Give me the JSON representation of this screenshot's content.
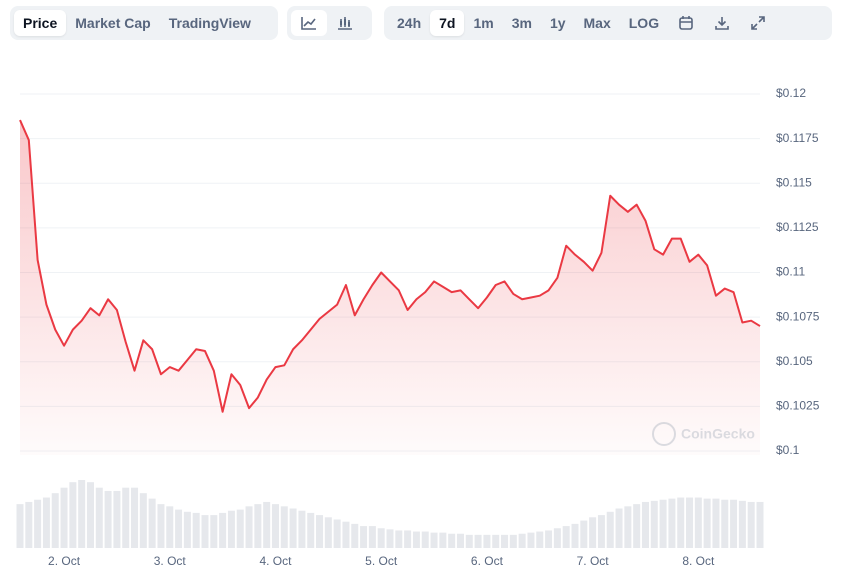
{
  "toolbar": {
    "views": [
      "Price",
      "Market Cap",
      "TradingView"
    ],
    "active_view": 0,
    "ranges": [
      "24h",
      "7d",
      "1m",
      "3m",
      "1y",
      "Max",
      "LOG"
    ],
    "active_range": 1
  },
  "chart_data": {
    "type": "area",
    "watermark": "CoinGecko",
    "color": "#ea3943",
    "grid": true,
    "categories": [
      null,
      null,
      null,
      null,
      null,
      "2. Oct",
      null,
      null,
      null,
      null,
      null,
      null,
      null,
      null,
      null,
      null,
      null,
      "3. Oct",
      null,
      null,
      null,
      null,
      null,
      null,
      null,
      null,
      null,
      null,
      null,
      "4. Oct",
      null,
      null,
      null,
      null,
      null,
      null,
      null,
      null,
      null,
      null,
      null,
      "5. Oct",
      null,
      null,
      null,
      null,
      null,
      null,
      null,
      null,
      null,
      null,
      null,
      "6. Oct",
      null,
      null,
      null,
      null,
      null,
      null,
      null,
      null,
      null,
      null,
      null,
      "7. Oct",
      null,
      null,
      null,
      null,
      null,
      null,
      null,
      null,
      null,
      null,
      null,
      "8. Oct",
      null,
      null,
      null,
      null,
      null,
      null,
      null
    ],
    "values": [
      0.11854,
      0.11742,
      0.1107,
      0.1082,
      0.1068,
      0.1059,
      0.1068,
      0.1073,
      0.108,
      0.1076,
      0.1085,
      0.1079,
      0.1061,
      0.1045,
      0.1062,
      0.1057,
      0.1043,
      0.1047,
      0.1045,
      0.1051,
      0.1057,
      0.1056,
      0.1045,
      0.1022,
      0.1043,
      0.1037,
      0.1024,
      0.103,
      0.104,
      0.1047,
      0.1048,
      0.1057,
      0.1062,
      0.1068,
      0.1074,
      0.1078,
      0.1082,
      0.1093,
      0.1076,
      0.1085,
      0.1093,
      0.11,
      0.1095,
      0.109,
      0.1079,
      0.1085,
      0.1089,
      0.1095,
      0.1092,
      0.1089,
      0.109,
      0.1085,
      0.108,
      0.1086,
      0.1093,
      0.1095,
      0.1088,
      0.1085,
      0.1086,
      0.1087,
      0.109,
      0.1097,
      0.1115,
      0.111,
      0.1106,
      0.1101,
      0.1111,
      0.1143,
      0.1138,
      0.1134,
      0.1138,
      0.1129,
      0.1113,
      0.111,
      0.1119,
      0.1119,
      0.1106,
      0.111,
      0.1104,
      0.1087,
      0.1091,
      0.1089,
      0.1072,
      0.1073,
      0.107
    ],
    "volume": [
      40,
      42,
      44,
      46,
      50,
      55,
      60,
      62,
      60,
      55,
      52,
      52,
      55,
      55,
      50,
      45,
      40,
      38,
      35,
      33,
      32,
      30,
      30,
      32,
      34,
      35,
      38,
      40,
      42,
      40,
      38,
      36,
      34,
      32,
      30,
      28,
      26,
      24,
      22,
      20,
      20,
      18,
      17,
      16,
      16,
      15,
      15,
      14,
      14,
      13,
      13,
      12,
      12,
      12,
      12,
      12,
      12,
      13,
      14,
      15,
      16,
      18,
      20,
      22,
      25,
      28,
      30,
      33,
      36,
      38,
      40,
      42,
      43,
      44,
      45,
      46,
      46,
      46,
      45,
      45,
      44,
      44,
      43,
      42,
      42
    ],
    "ylim": [
      0.1,
      0.12
    ],
    "yticks": [
      {
        "value": 0.1,
        "label": "$0.1"
      },
      {
        "value": 0.1025,
        "label": "$0.1025"
      },
      {
        "value": 0.105,
        "label": "$0.105"
      },
      {
        "value": 0.1075,
        "label": "$0.1075"
      },
      {
        "value": 0.11,
        "label": "$0.11"
      },
      {
        "value": 0.1125,
        "label": "$0.1125"
      },
      {
        "value": 0.115,
        "label": "$0.115"
      },
      {
        "value": 0.1175,
        "label": "$0.1175"
      },
      {
        "value": 0.12,
        "label": "$0.12"
      }
    ]
  }
}
